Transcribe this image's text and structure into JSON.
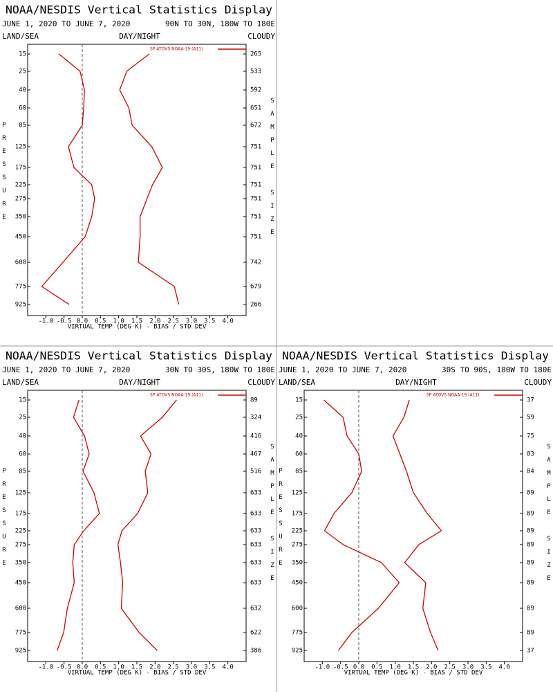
{
  "chart_data": [
    {
      "type": "line",
      "title": "NOAA/NESDIS Vertical Statistics Display",
      "subtitle": "JUNE 1, 2020 TO JUNE 7, 2020",
      "region": "90N TO 30N, 180W TO 180E",
      "land_sea": "LAND/SEA",
      "day_night": "DAY/NIGHT",
      "cloud": "CLOUDY",
      "ylabel": "PRESSURE",
      "y2label": "SAMPLE SIZE",
      "xlabel": "VIRTUAL TEMP (DEG K) - BIAS / STD DEV",
      "categories": [
        15,
        25,
        40,
        60,
        85,
        125,
        175,
        225,
        275,
        350,
        450,
        600,
        775,
        925
      ],
      "sample_sizes": [
        265,
        533,
        592,
        651,
        672,
        751,
        751,
        751,
        751,
        751,
        751,
        742,
        679,
        266
      ],
      "series": [
        {
          "name": "SP ATOVS NOAA-19 (A11)",
          "color": "#d00000",
          "values": [
            -0.64,
            -0.06,
            0.06,
            0.04,
            0.0,
            -0.38,
            -0.23,
            0.26,
            0.34,
            0.26,
            0.08,
            -0.53,
            -1.11,
            -0.36
          ]
        },
        {
          "color": "#d00000",
          "values": [
            1.84,
            1.22,
            1.03,
            1.28,
            1.37,
            1.91,
            2.2,
            1.93,
            1.78,
            1.59,
            1.59,
            1.54,
            2.53,
            2.65
          ]
        }
      ],
      "xlim": [
        -1.5,
        4.5
      ],
      "xticks": [
        {
          "value": -1,
          "label": "-1.0"
        },
        -0.5,
        {
          "value": 0,
          "label": "0.0"
        },
        0.5,
        {
          "value": 1,
          "label": "1.0"
        },
        1.5,
        {
          "value": 2,
          "label": "2.0"
        },
        2.5,
        {
          "value": 3,
          "label": "3.0"
        },
        3.5,
        {
          "value": 4,
          "label": "4.0"
        }
      ]
    },
    {
      "type": "line",
      "title": "NOAA/NESDIS Vertical Statistics Display",
      "subtitle": "JUNE 1, 2020 TO JUNE 7, 2020",
      "region": "30N TO 30S, 180W TO 180E",
      "land_sea": "LAND/SEA",
      "day_night": "DAY/NIGHT",
      "cloud": "CLOUDY",
      "ylabel": "PRESSURE",
      "y2label": "SAMPLE SIZE",
      "xlabel": "VIRTUAL TEMP (DEG K) - BIAS / STD DEV",
      "categories": [
        15,
        25,
        40,
        60,
        85,
        125,
        175,
        225,
        275,
        350,
        450,
        600,
        775,
        925
      ],
      "sample_sizes": [
        89,
        324,
        416,
        467,
        516,
        633,
        633,
        633,
        633,
        633,
        633,
        632,
        622,
        386
      ],
      "series": [
        {
          "name": "SP ATOVS NOAA-19 (A11)",
          "color": "#d00000",
          "values": [
            -0.09,
            -0.24,
            0.06,
            0.19,
            0.02,
            0.32,
            0.47,
            0.04,
            -0.22,
            -0.26,
            -0.22,
            -0.41,
            -0.51,
            -0.69
          ]
        },
        {
          "color": "#d00000",
          "values": [
            2.59,
            2.2,
            1.6,
            1.89,
            1.73,
            1.8,
            1.52,
            1.09,
            0.98,
            1.05,
            1.11,
            1.07,
            1.56,
            2.06
          ]
        }
      ],
      "xlim": [
        -1.5,
        4.5
      ],
      "xticks": [
        {
          "value": -1,
          "label": "-1.0"
        },
        -0.5,
        {
          "value": 0,
          "label": "0.0"
        },
        0.5,
        {
          "value": 1,
          "label": "1.0"
        },
        1.5,
        {
          "value": 2,
          "label": "2.0"
        },
        2.5,
        {
          "value": 3,
          "label": "3.0"
        },
        3.5,
        {
          "value": 4,
          "label": "4.0"
        }
      ]
    },
    {
      "type": "line",
      "title": "NOAA/NESDIS Vertical Statistics Display",
      "subtitle": "JUNE 1, 2020 TO JUNE 7, 2020",
      "region": "30S TO 90S, 180W TO 180E",
      "land_sea": "LAND/SEA",
      "day_night": "DAY/NIGHT",
      "cloud": "CLOUDY",
      "ylabel": "PRESSURE",
      "y2label": "SAMPLE SIZE",
      "xlabel": "VIRTUAL TEMP (DEG K) - BIAS / STD DEV",
      "categories": [
        15,
        25,
        40,
        60,
        85,
        125,
        175,
        225,
        275,
        350,
        450,
        600,
        775,
        925
      ],
      "sample_sizes": [
        37,
        59,
        75,
        83,
        84,
        89,
        89,
        89,
        89,
        89,
        89,
        89,
        89,
        37
      ],
      "series": [
        {
          "name": "SP ATOVS NOAA-19 (A11)",
          "color": "#d00000",
          "values": [
            -0.96,
            -0.43,
            -0.32,
            0.0,
            0.08,
            -0.19,
            -0.68,
            -0.94,
            -0.43,
            0.62,
            1.11,
            0.54,
            -0.19,
            -0.56
          ]
        },
        {
          "color": "#d00000",
          "values": [
            1.39,
            1.24,
            0.94,
            1.13,
            1.31,
            1.5,
            1.88,
            2.27,
            1.65,
            1.26,
            1.84,
            1.76,
            1.97,
            2.18
          ]
        }
      ],
      "xlim": [
        -1.5,
        4.5
      ],
      "xticks": [
        {
          "value": -1,
          "label": "-1.0"
        },
        -0.5,
        {
          "value": 0,
          "label": "0.0"
        },
        0.5,
        {
          "value": 1,
          "label": "1.0"
        },
        1.5,
        {
          "value": 2,
          "label": "2.0"
        },
        2.5,
        {
          "value": 3,
          "label": "3.0"
        },
        3.5,
        {
          "value": 4,
          "label": "4.0"
        }
      ]
    }
  ]
}
